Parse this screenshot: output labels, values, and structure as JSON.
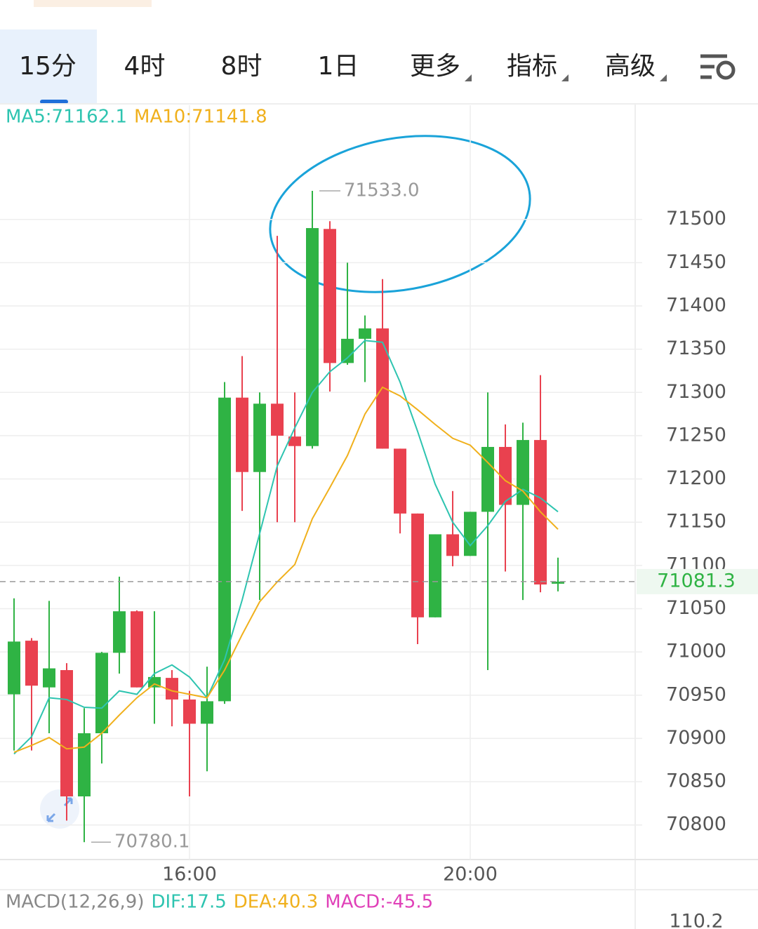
{
  "tabs": [
    "15分",
    "4时",
    "8时",
    "1日",
    "更多",
    "指标",
    "高级"
  ],
  "chart_data": {
    "type": "candlestick",
    "categories": [
      null,
      null,
      null,
      null,
      null,
      null,
      null,
      null,
      null,
      null,
      "16:00",
      null,
      null,
      null,
      null,
      null,
      null,
      null,
      null,
      null,
      null,
      null,
      null,
      null,
      null,
      null,
      "20:00",
      null,
      null,
      null,
      null,
      null
    ],
    "open": [
      70951,
      71013,
      70959,
      70979,
      70833,
      70906,
      70999,
      71047,
      70959,
      70970,
      70945,
      70917,
      70943,
      71294,
      71208,
      71287,
      71249,
      71238,
      71489,
      71334,
      71362,
      71374,
      71235,
      71160,
      71040,
      71136,
      71111,
      71162,
      71237,
      71170,
      71245,
      71079
    ],
    "high": [
      71062,
      71016,
      71059,
      70987,
      70935,
      71000,
      71087,
      71048,
      71047,
      70979,
      70955,
      70983,
      71312,
      71342,
      71300,
      71481,
      71300,
      71533,
      71498,
      71450,
      71389,
      71431,
      71235,
      71160,
      71136,
      71186,
      71162,
      71300,
      71263,
      71265,
      71320,
      71109
    ],
    "low": [
      70886,
      70886,
      70906,
      70805,
      70780.1,
      70871,
      70975,
      70959,
      70917,
      70914,
      70833,
      70862,
      70940,
      71163,
      71060,
      71150,
      71150,
      71235,
      71301,
      71332,
      71312,
      71235,
      71137,
      71009,
      71040,
      71099,
      71111,
      70979,
      71093,
      71060,
      71069,
      71070
    ],
    "close": [
      71012,
      70961,
      70981,
      70833,
      70906,
      70999,
      71047,
      70959,
      70971,
      70945,
      70917,
      70943,
      71294,
      71208,
      71287,
      71250,
      71238,
      71490,
      71334,
      71362,
      71374,
      71235,
      71160,
      71040,
      71136,
      71111,
      71162,
      71237,
      71170,
      71245,
      71078,
      71081.3
    ],
    "up_color": "#2fb344",
    "down_color": "#e9414f",
    "series": [
      {
        "name": "MA5:71162.1",
        "color": "#2ec4b0",
        "values": [
          70882,
          70902,
          70947,
          70945,
          70936,
          70935,
          70955,
          70951,
          70975,
          70985,
          70971,
          70947,
          70991,
          71060,
          71137,
          71215,
          71259,
          71300,
          71324,
          71340,
          71360,
          71358,
          71312,
          71255,
          71194,
          71150,
          71123,
          71146,
          71174,
          71188,
          71178,
          71162.1
        ]
      },
      {
        "name": "MA10:71141.8",
        "color": "#f0b01c",
        "values": [
          70884,
          70892,
          70901,
          70888,
          70890,
          70906,
          70927,
          70947,
          70963,
          70955,
          70951,
          70947,
          70979,
          71020,
          71058,
          71081,
          71101,
          71154,
          71190,
          71227,
          71275,
          71306,
          71296,
          71280,
          71263,
          71247,
          71239,
          71219,
          71198,
          71186,
          71162,
          71141.8
        ]
      }
    ],
    "ylim": [
      70760,
      71632
    ],
    "yticks": [
      70800,
      70850,
      70900,
      70950,
      71000,
      71050,
      71100,
      71150,
      71200,
      71250,
      71300,
      71350,
      71400,
      71450,
      71500
    ],
    "grid": true,
    "max_marker": {
      "value": 71533,
      "label": "71533.0"
    },
    "min_marker": {
      "value": 70780.1,
      "label": "70780.1"
    },
    "last_price": 71081.3
  },
  "macd_panel": {
    "title": "MACD(12,26,9)",
    "legend": [
      {
        "text": "DIF:17.5",
        "color": "#2ec4b0"
      },
      {
        "text": "DEA:40.3",
        "color": "#f0b01c"
      },
      {
        "text": "MACD:-45.5",
        "color": "#e040b8"
      }
    ],
    "ytick_top": 110.2
  }
}
